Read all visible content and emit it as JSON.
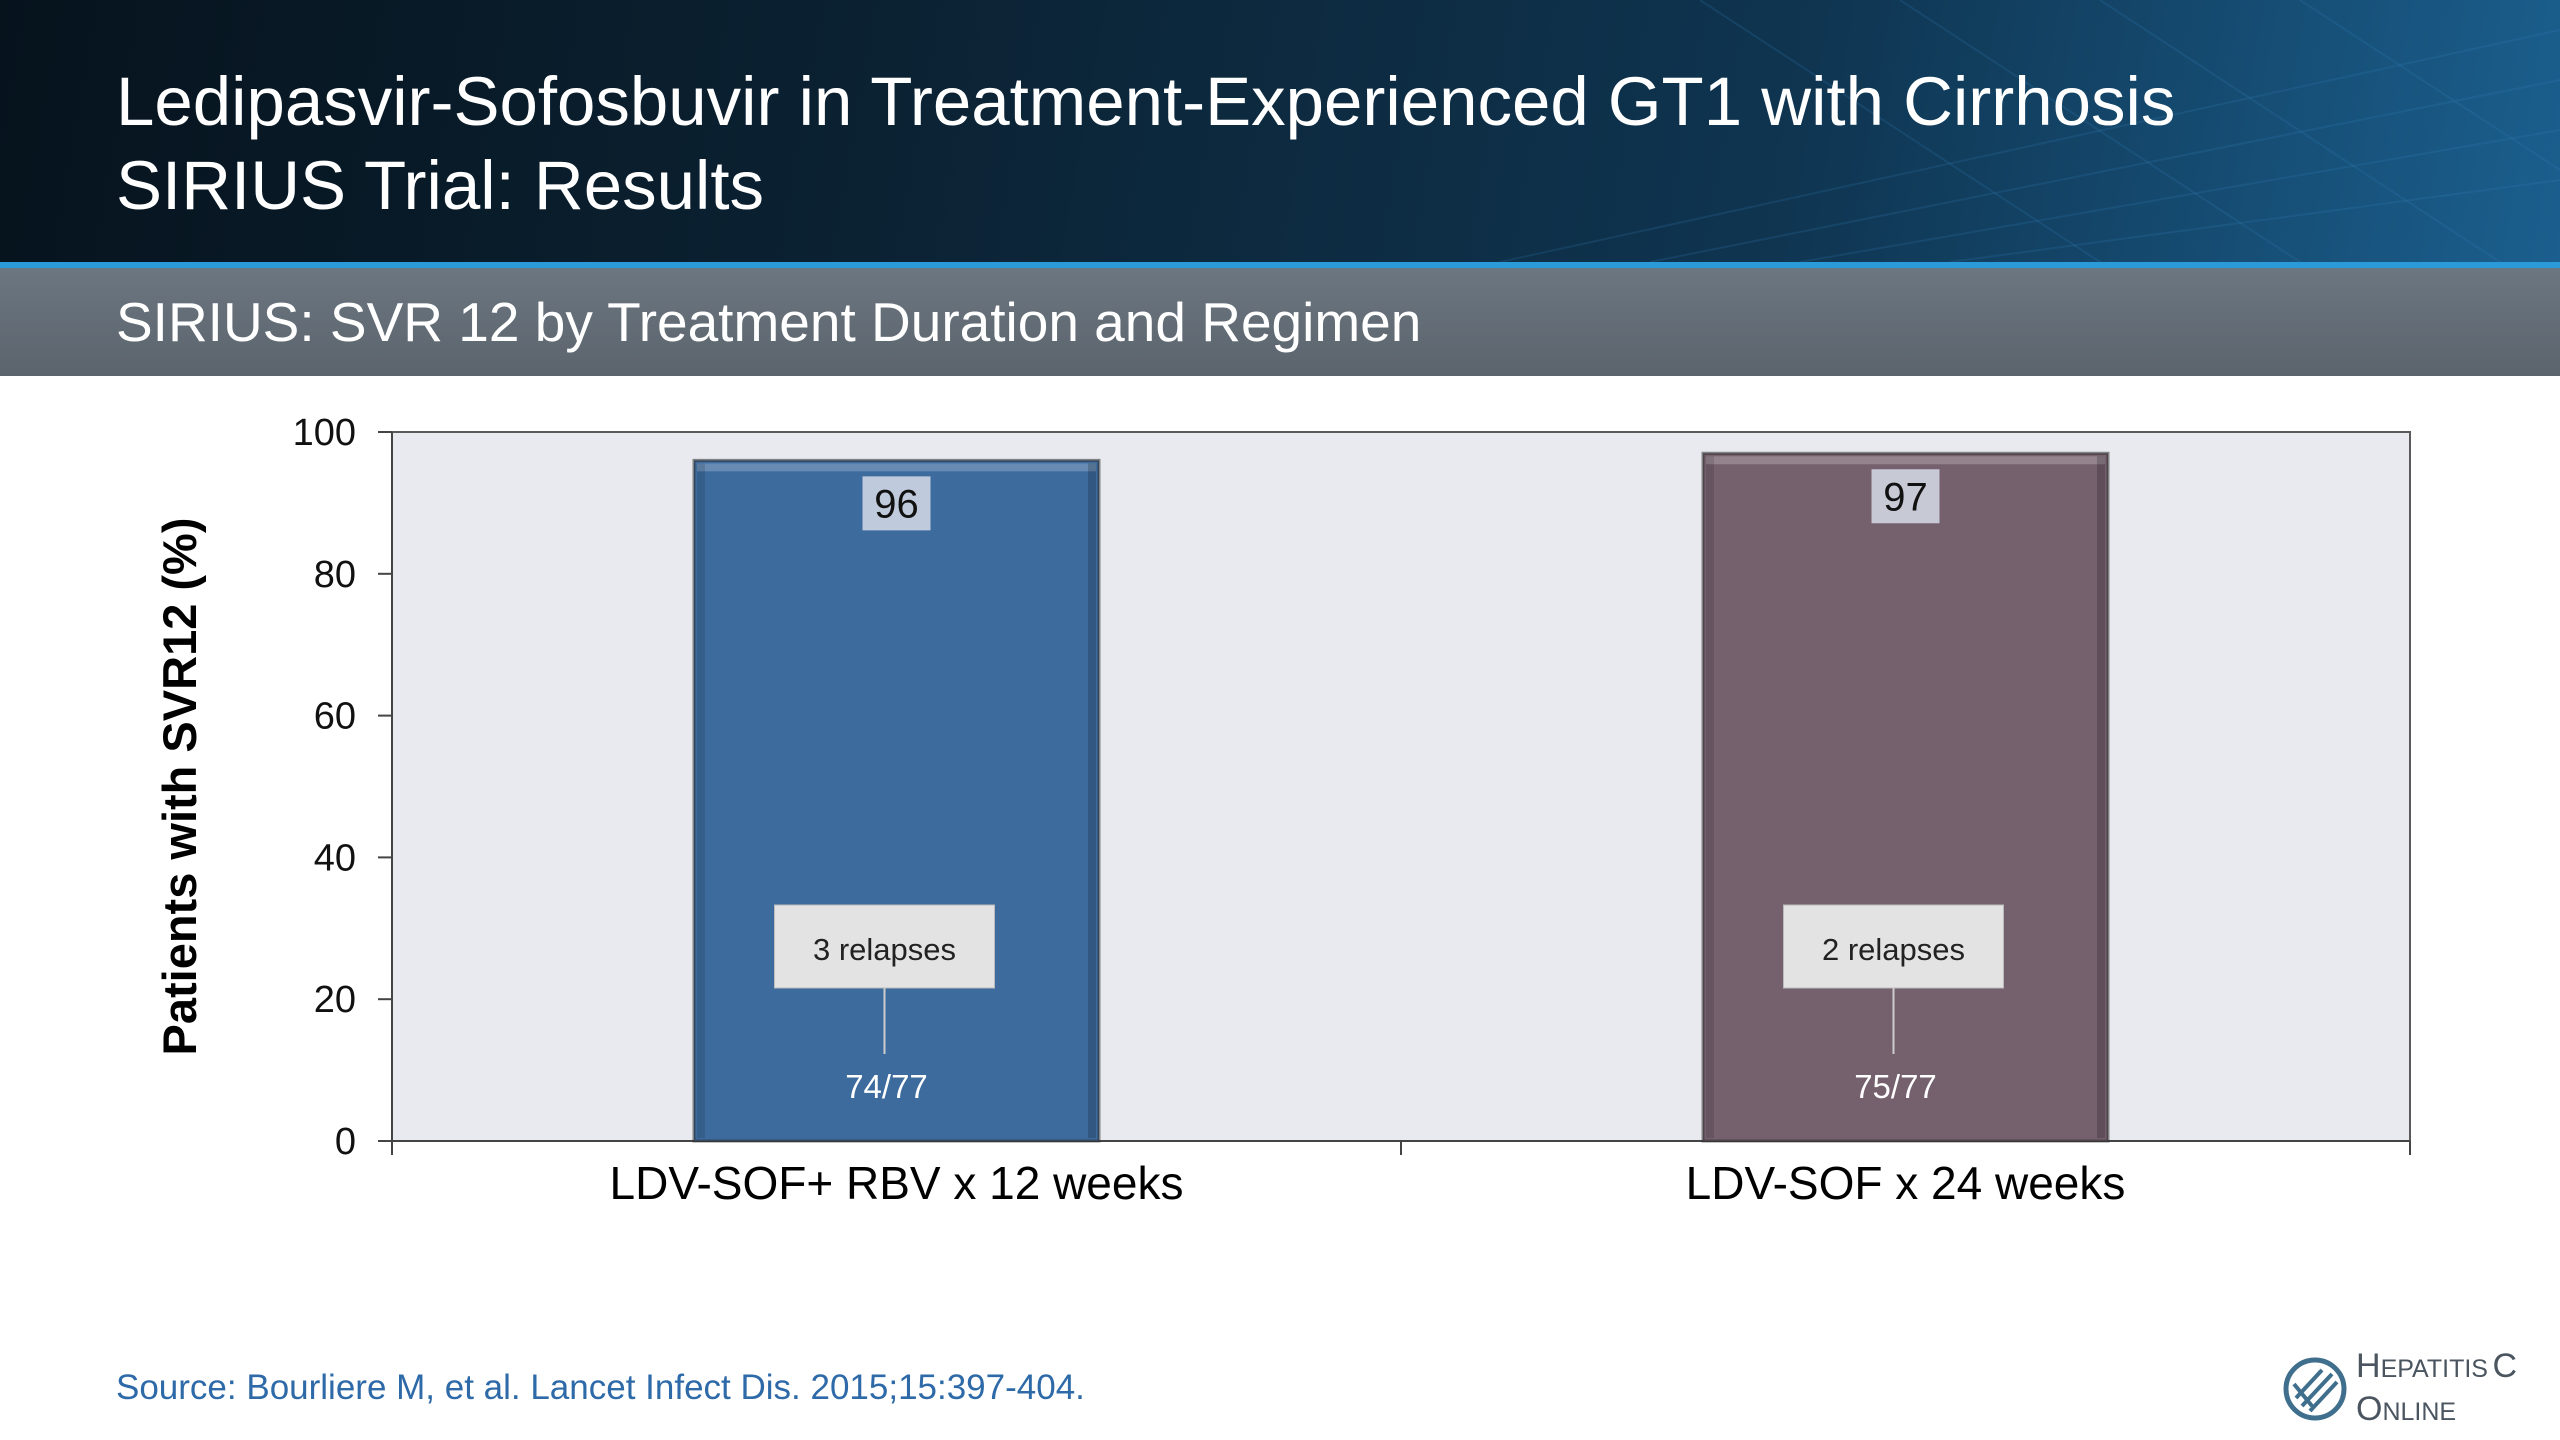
{
  "header": {
    "title_line1": "Ledipasvir-Sofosbuvir in Treatment-Experienced GT1 with Cirrhosis",
    "title_line2": "SIRIUS Trial: Results",
    "subtitle": "SIRIUS: SVR 12 by Treatment Duration and Regimen"
  },
  "chart_data": {
    "type": "bar",
    "title": "SIRIUS: SVR 12 by Treatment Duration and Regimen",
    "ylabel": "Patients with SVR12 (%)",
    "xlabel": "",
    "ylim": [
      0,
      100
    ],
    "yticks": [
      0,
      20,
      40,
      60,
      80,
      100
    ],
    "grid": false,
    "categories": [
      "LDV-SOF+ RBV x 12 weeks",
      "LDV-SOF x 24 weeks"
    ],
    "values": [
      96,
      97
    ],
    "value_labels": [
      "96",
      "97"
    ],
    "fractions": [
      "74/77",
      "75/77"
    ],
    "annotations": [
      "3 relapses",
      "2 relapses"
    ],
    "colors": [
      "#3d6b9e",
      "#75606e"
    ],
    "plot_background": "#e8eaf0"
  },
  "source": "Source: Bourliere M, et al. Lancet Infect Dis. 2015;15:397-404.",
  "logo": {
    "icon": "hepatitis-c-online-logo-icon",
    "line1_cap": "H",
    "line1_rest": "EPATITIS",
    "line1_letter": "C",
    "line2_cap": "O",
    "line2_rest": "NLINE"
  }
}
